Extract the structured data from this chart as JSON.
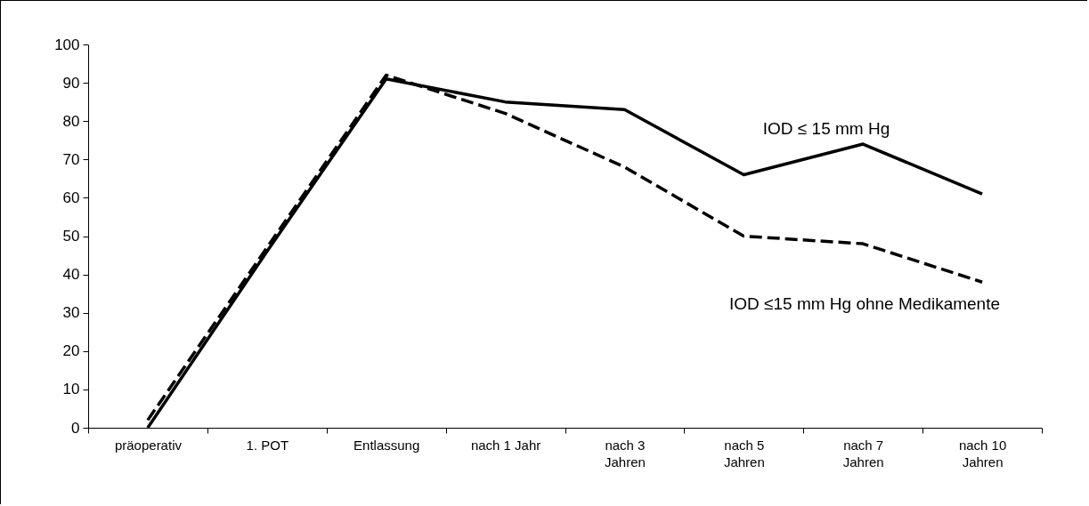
{
  "chart_data": {
    "type": "line",
    "categories": [
      "präoperativ",
      "1. POT",
      "Entlassung",
      "nach 1 Jahr",
      "nach 3 Jahren",
      "nach 5 Jahren",
      "nach 7 Jahren",
      "nach 10 Jahren"
    ],
    "series": [
      {
        "name": "IOD ≤ 15 mm Hg",
        "color": "#000000",
        "line_style": "solid",
        "values": [
          0,
          46,
          91,
          85,
          83,
          66,
          74,
          61
        ]
      },
      {
        "name": "IOD ≤15 mm Hg ohne Medikamente",
        "color": "#000000",
        "line_style": "dashed",
        "values": [
          2,
          47,
          92,
          82,
          68,
          50,
          48,
          38
        ]
      }
    ],
    "ylim": [
      0,
      100
    ],
    "yticks": [
      0,
      10,
      20,
      30,
      40,
      50,
      60,
      70,
      80,
      90,
      100
    ],
    "grid": false,
    "legend": false,
    "marker": "none"
  }
}
